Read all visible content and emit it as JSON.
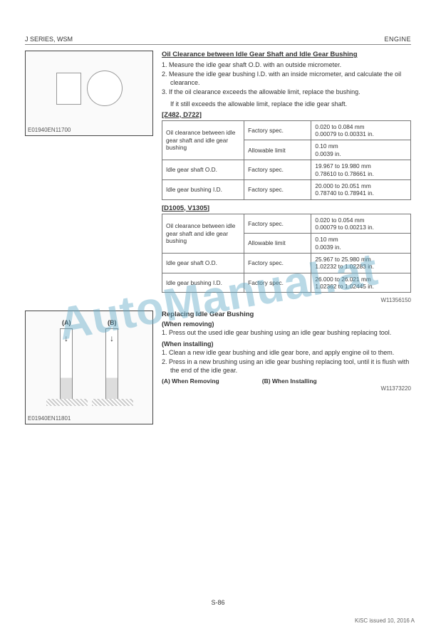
{
  "header": {
    "left": "J SERIES, WSM",
    "right": "ENGINE"
  },
  "figure1": {
    "caption": "E01940EN11700"
  },
  "figure2": {
    "caption": "E01940EN11801",
    "labelA": "(A)",
    "labelB": "(B)"
  },
  "section1": {
    "title": "Oil Clearance between Idle Gear Shaft and Idle Gear Bushing",
    "steps": [
      "1.  Measure the idle gear shaft O.D. with an outside micrometer.",
      "2.  Measure the idle gear bushing I.D. with an inside micrometer, and calculate the oil clearance.",
      "3.  If the oil clearance exceeds the allowable limit, replace the bushing."
    ],
    "note": "If it still exceeds the allowable limit, replace the idle gear shaft."
  },
  "tableA": {
    "label": "[Z482, D722]",
    "rows": [
      {
        "c1": "Oil clearance between idle gear shaft and idle gear bushing",
        "c2": "Factory spec.",
        "c3": "0.020 to 0.084  mm\n0.00079 to 0.00331 in.",
        "rowspan": 2,
        "c2b": "Allowable limit",
        "c3b": "0.10 mm\n0.0039 in."
      },
      {
        "c1": "Idle gear shaft O.D.",
        "c2": "Factory spec.",
        "c3": "19.967 to 19.980 mm\n0.78610 to 0.78661 in."
      },
      {
        "c1": "Idle gear bushing I.D.",
        "c2": "Factory spec.",
        "c3": "20.000 to 20.051 mm\n0.78740 to 0.78941 in."
      }
    ]
  },
  "tableB": {
    "label": "[D1005, V1305]",
    "rows": [
      {
        "c1": "Oil clearance between idle gear shaft and idle gear bushing",
        "c2": "Factory spec.",
        "c3": "0.020 to 0.054  mm\n0.00079 to 0.00213 in.",
        "rowspan": 2,
        "c2b": "Allowable limit",
        "c3b": "0.10 mm\n0.0039 in."
      },
      {
        "c1": "Idle gear shaft O.D.",
        "c2": "Factory spec.",
        "c3": "25.967 to 25.980 mm\n1.02232 to 1.02283 in."
      },
      {
        "c1": "Idle gear bushing I.D.",
        "c2": "Factory spec.",
        "c3": "26.000 to 26.021 mm\n1.02362 to 1.02445 in."
      }
    ],
    "ref": "W11356150"
  },
  "section2": {
    "title": "Replacing Idle Gear Bushing",
    "removing_hdr": "(When removing)",
    "removing_steps": [
      "1.  Press out the used idle gear bushing using an idle gear bushing replacing tool."
    ],
    "installing_hdr": "(When installing)",
    "installing_steps": [
      "1.  Clean a new idle gear bushing and idle gear bore, and apply engine oil to them.",
      "2.  Press in a new brushing using an idle gear bushing replacing tool, until it is flush with the end of the idle gear."
    ],
    "labels": {
      "a": "(A) When Removing",
      "b": "(B) When Installing"
    },
    "ref": "W11373220"
  },
  "page_num": "S-86",
  "footer": "KiSC issued 10, 2016 A",
  "watermark": "AutoManual.at"
}
